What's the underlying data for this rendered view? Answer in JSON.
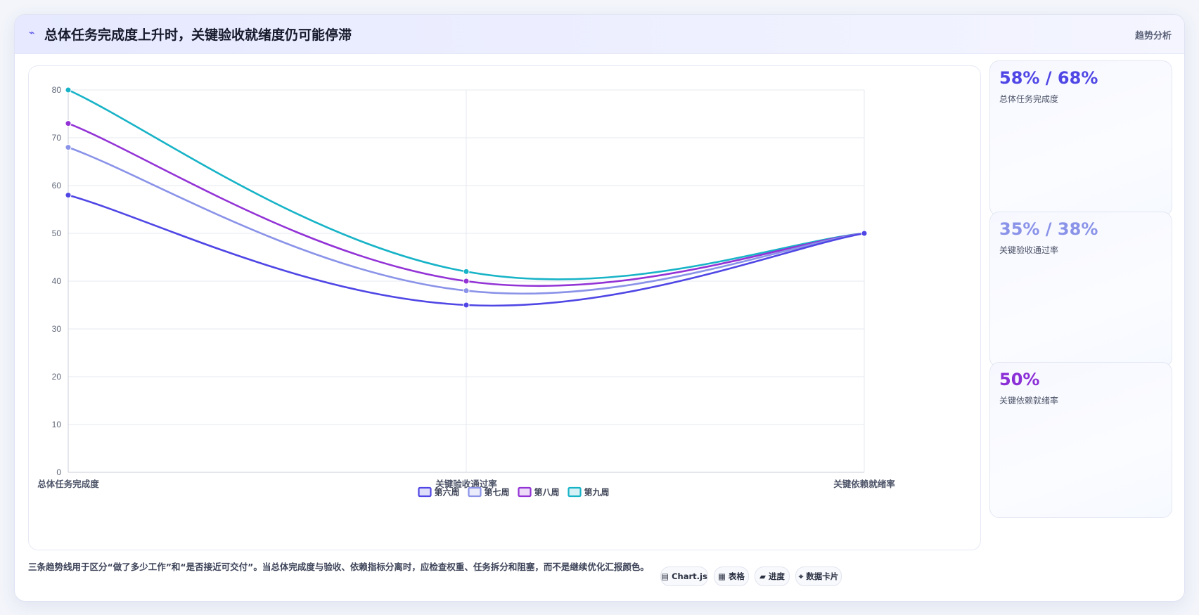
{
  "header": {
    "title": "总体任务完成度上升时，关键验收就绪度仍可能停滞",
    "tag": "趋势分析"
  },
  "kpis": [
    {
      "value": "58% / 68%",
      "label": "总体任务完成度",
      "color": "#4f46e5"
    },
    {
      "value": "35% / 38%",
      "label": "关键验收通过率",
      "color": "#8a93e8"
    },
    {
      "value": "50%",
      "label": "关键依赖就绪率",
      "color": "#8b2fd6"
    }
  ],
  "footer": {
    "note": "三条趋势线用于区分“做了多少工作”和“是否接近可交付”。当总体完成度与验收、依赖指标分离时，应检查权重、任务拆分和阻塞，而不是继续优化汇报颜色。",
    "chips": [
      {
        "label": "▤ Chart.js",
        "icon": "chart-icon"
      },
      {
        "label": "▦ 表格",
        "icon": "table-icon"
      },
      {
        "label": "▰ 进度",
        "icon": "progress-icon"
      },
      {
        "label": "⌖ 数据卡片",
        "icon": "card-icon"
      }
    ]
  },
  "chart_data": {
    "type": "line",
    "categories": [
      "总体任务完成度",
      "关键验收通过率",
      "关键依赖就绪率"
    ],
    "series": [
      {
        "name": "第六周",
        "values": [
          58,
          35,
          50
        ],
        "color": "#4f46e5"
      },
      {
        "name": "第七周",
        "values": [
          68,
          38,
          50
        ],
        "color": "#8a93e8"
      },
      {
        "name": "第八周",
        "values": [
          73,
          40,
          50
        ],
        "color": "#9333d6"
      },
      {
        "name": "第九周",
        "values": [
          80,
          42,
          50
        ],
        "color": "#17b3c7"
      }
    ],
    "ylim": [
      0,
      80
    ],
    "yticks": [
      0,
      10,
      20,
      30,
      40,
      50,
      60,
      70,
      80
    ],
    "grid": true,
    "legend": "bottom"
  }
}
